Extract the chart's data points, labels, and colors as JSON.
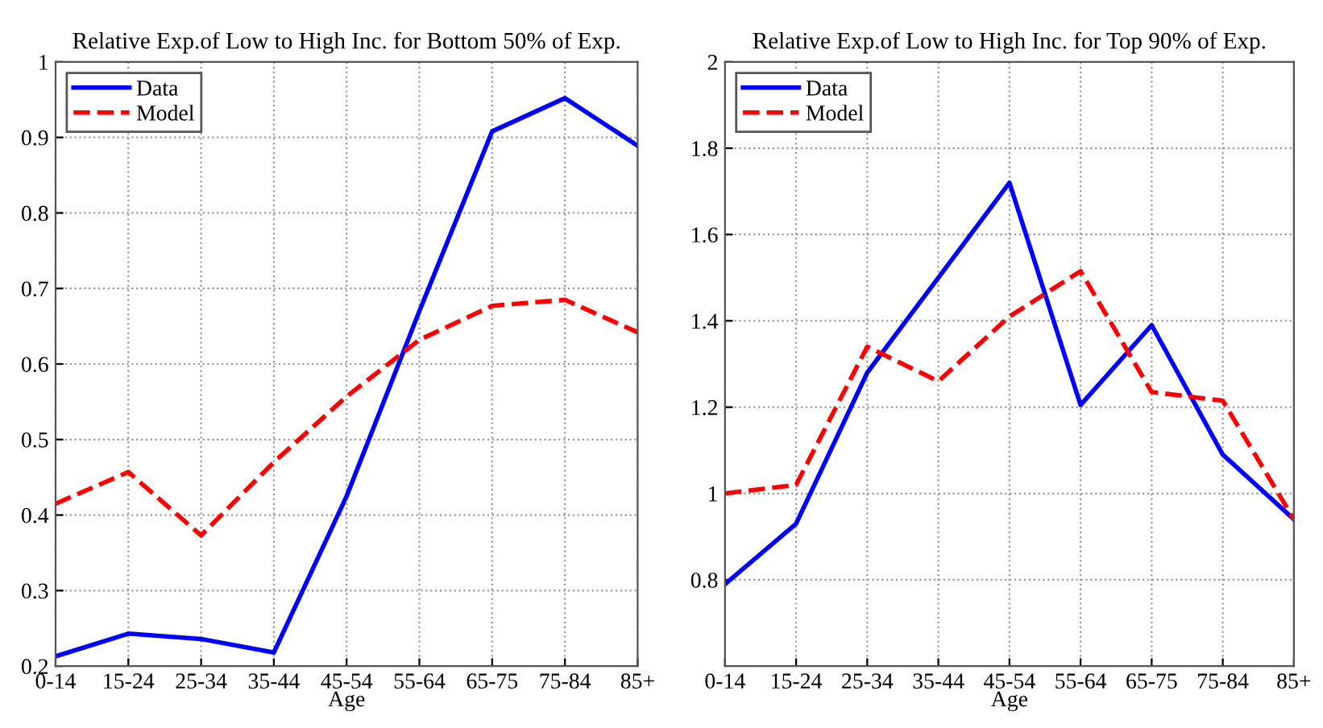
{
  "chart_data": [
    {
      "type": "line",
      "title": "Relative Exp.of Low to High Inc. for Bottom 50% of Exp.",
      "xlabel": "Age",
      "categories": [
        "0-14",
        "15-24",
        "25-34",
        "35-44",
        "45-54",
        "55-64",
        "65-75",
        "75-84",
        "85+"
      ],
      "series": [
        {
          "name": "Data",
          "color": "#0000ff",
          "line_style": "solid",
          "values": [
            0.213,
            0.243,
            0.236,
            0.218,
            0.425,
            0.67,
            0.908,
            0.952,
            0.889
          ]
        },
        {
          "name": "Model",
          "color": "#ff0000",
          "line_style": "dashed",
          "values": [
            0.415,
            0.457,
            0.373,
            0.47,
            0.557,
            0.632,
            0.677,
            0.685,
            0.642
          ]
        }
      ],
      "ylim": [
        0.2,
        1
      ],
      "yticks": [
        0.2,
        0.3,
        0.4,
        0.5,
        0.6,
        0.7,
        0.8,
        0.9,
        1
      ],
      "grid": true,
      "legend": "top left"
    },
    {
      "type": "line",
      "title": "Relative Exp.of Low to High Inc. for Top 90% of Exp.",
      "xlabel": "Age",
      "categories": [
        "0-14",
        "15-24",
        "25-34",
        "35-44",
        "45-54",
        "55-64",
        "65-75",
        "75-84",
        "85+"
      ],
      "series": [
        {
          "name": "Data",
          "color": "#0000ff",
          "line_style": "solid",
          "values": [
            0.79,
            0.93,
            1.28,
            1.5,
            1.72,
            1.205,
            1.39,
            1.09,
            0.94
          ]
        },
        {
          "name": "Model",
          "color": "#ff0000",
          "line_style": "dashed",
          "values": [
            1.0,
            1.02,
            1.34,
            1.26,
            1.41,
            1.515,
            1.235,
            1.215,
            0.94
          ]
        }
      ],
      "ylim": [
        0.6,
        2
      ],
      "yticks": [
        0.8,
        1,
        1.2,
        1.4,
        1.6,
        1.8,
        2
      ],
      "grid": true,
      "legend": "top left"
    }
  ]
}
